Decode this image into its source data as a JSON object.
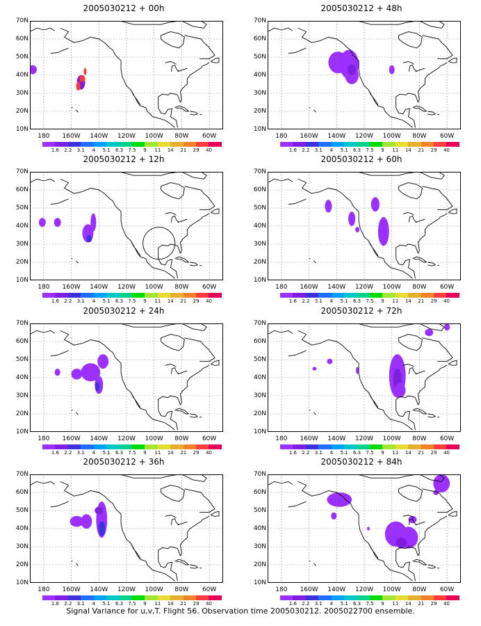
{
  "panels": [
    {
      "title": "2005030212 + 00h",
      "lead": "00h"
    },
    {
      "title": "2005030212 + 48h",
      "lead": "48h"
    },
    {
      "title": "2005030212 + 12h",
      "lead": "12h"
    },
    {
      "title": "2005030212 + 60h",
      "lead": "60h"
    },
    {
      "title": "2005030212 + 24h",
      "lead": "24h"
    },
    {
      "title": "2005030212 + 72h",
      "lead": "72h"
    },
    {
      "title": "2005030212 + 36h",
      "lead": "36h"
    },
    {
      "title": "2005030212 + 84h",
      "lead": "84h"
    }
  ],
  "axes": {
    "lat_labels": [
      "70N",
      "60N",
      "50N",
      "40N",
      "30N",
      "20N",
      "10N"
    ],
    "lon_labels": [
      "180",
      "160W",
      "140W",
      "120W",
      "100W",
      "80W",
      "60W"
    ]
  },
  "colorbar": {
    "labels": [
      "1.6",
      "2.2",
      "3.1",
      "4",
      "5.1",
      "6.3",
      "7.5",
      "9",
      "11",
      "14",
      "21",
      "29",
      "40"
    ],
    "colors": [
      "#9b30ff",
      "#7d1ee0",
      "#3c32dc",
      "#1e6eff",
      "#00a0ff",
      "#00c8c8",
      "#00d28c",
      "#00dc00",
      "#a0e632",
      "#e6dc32",
      "#e6af2d",
      "#f08228",
      "#fa3c3c",
      "#e6005a"
    ]
  },
  "caption": "Signal Variance for u,v,T. Flight 56. Observation time 2005030212. 2005022700 ensemble."
}
